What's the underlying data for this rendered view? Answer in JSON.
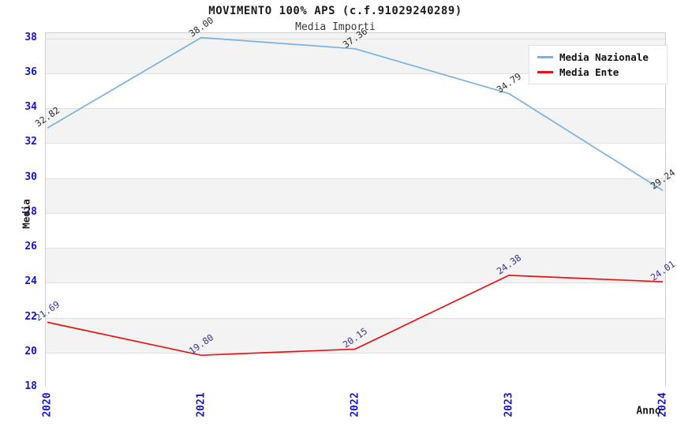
{
  "chart_data": {
    "type": "line",
    "title": "MOVIMENTO 100% APS (c.f.91029240289)",
    "subtitle": "Media Importi",
    "xlabel": "Anno",
    "ylabel": "Media",
    "x": [
      "2020",
      "2021",
      "2022",
      "2023",
      "2024"
    ],
    "ylim": [
      18,
      38.3
    ],
    "yticks": [
      18,
      20,
      22,
      24,
      26,
      28,
      30,
      32,
      34,
      36,
      38
    ],
    "grid": "horizontal-bands-alternating",
    "legend_position": "top-right",
    "series": [
      {
        "name": "Media Nazionale",
        "color": "#79b2e2",
        "label_color": "#2b2b2b",
        "values": [
          32.82,
          38.0,
          37.36,
          34.79,
          29.24
        ],
        "labels": [
          "32.82",
          "38.00",
          "37.36",
          "34.79",
          "29.24"
        ]
      },
      {
        "name": "Media Ente",
        "color": "#e91312",
        "label_color": "#3434a6",
        "values": [
          21.69,
          19.8,
          20.15,
          24.38,
          24.01
        ],
        "labels": [
          "21.69",
          "19.80",
          "20.15",
          "24.38",
          "24.01"
        ]
      }
    ],
    "colors": {
      "tick_label": "#1414cc",
      "band_gray": "#f3f3f3",
      "band_white": "#ffffff",
      "gridline": "#e1e1e1",
      "plot_border": "#cfcfcf",
      "title_text": "#1c1c1c"
    }
  }
}
